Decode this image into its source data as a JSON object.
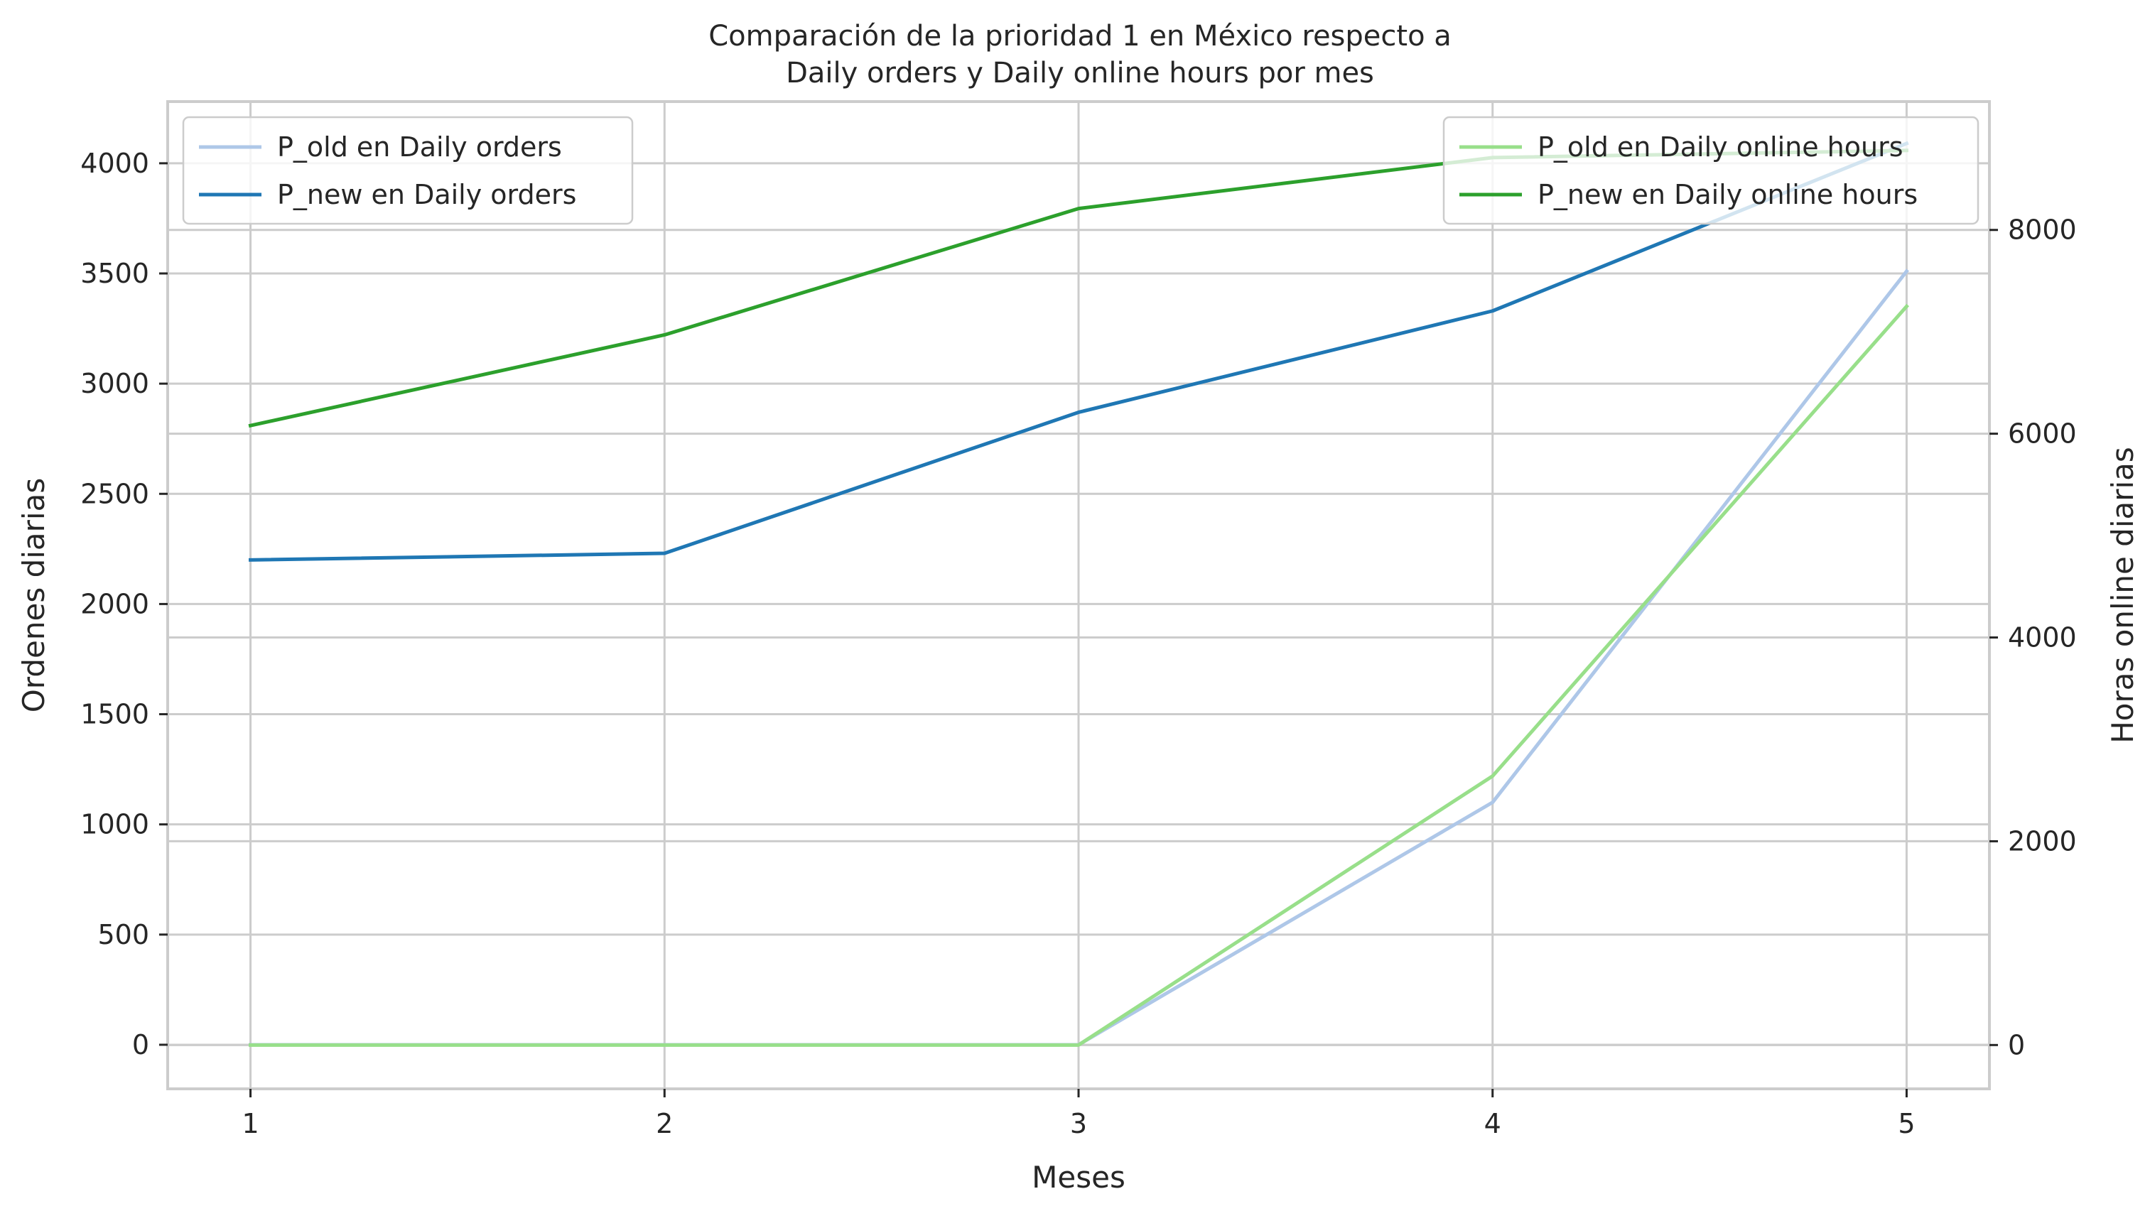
{
  "chart_data": {
    "type": "line",
    "title": [
      "Comparación de la prioridad 1 en México respecto a",
      "Daily orders y Daily online hours por mes"
    ],
    "xlabel": "Meses",
    "ylabel": "Ordenes diarias",
    "y2label": "Horas online diarias",
    "x": [
      1,
      2,
      3,
      4,
      5
    ],
    "xlim": [
      0.8,
      5.2
    ],
    "ylim": [
      -200,
      4280
    ],
    "y2lim": [
      -430,
      9260
    ],
    "yticks": [
      0,
      500,
      1000,
      1500,
      2000,
      2500,
      3000,
      3500,
      4000
    ],
    "y2ticks": [
      0,
      2000,
      4000,
      6000,
      8000
    ],
    "grid": true,
    "series": [
      {
        "name": "P_old en Daily orders",
        "axis": "left",
        "color": "#aec7e8",
        "values": [
          0,
          0,
          0,
          1100,
          3510
        ]
      },
      {
        "name": "P_new en Daily orders",
        "axis": "left",
        "color": "#1f77b4",
        "values": [
          2200,
          2230,
          2870,
          3330,
          4090
        ]
      },
      {
        "name": "P_old en Daily online hours",
        "axis": "right",
        "color": "#98df8a",
        "values": [
          0,
          0,
          0,
          2640,
          7250
        ]
      },
      {
        "name": "P_new en Daily online hours",
        "axis": "right",
        "color": "#2ca02c",
        "values": [
          6080,
          6970,
          8210,
          8710,
          8780
        ]
      }
    ],
    "legends": [
      {
        "placement": "upper-left",
        "series": [
          0,
          1
        ]
      },
      {
        "placement": "upper-right",
        "series": [
          2,
          3
        ]
      }
    ]
  }
}
